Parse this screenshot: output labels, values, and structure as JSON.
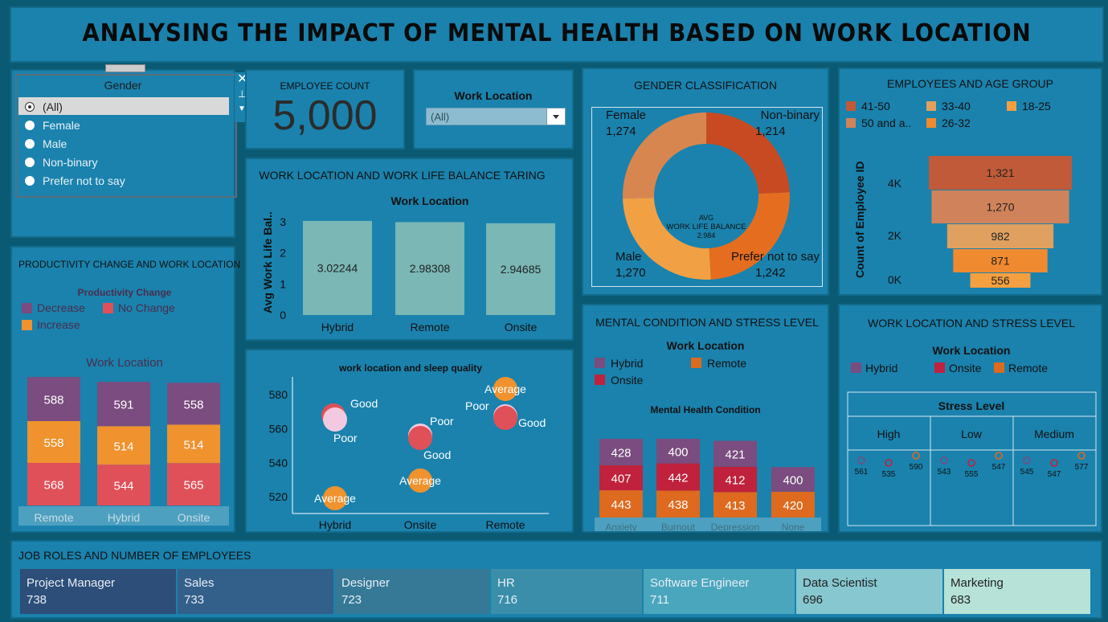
{
  "title": "ANALYSING THE IMPACT OF MENTAL HEALTH BASED ON WORK LOCATION",
  "colors": {
    "bg": "#1a82ad",
    "hybrid": "#7a4c7f",
    "onsite": "#c0213c",
    "remote": "#dd6a1e",
    "decrease": "#7a4c7f",
    "nochange": "#e05058",
    "increase": "#f0922e"
  },
  "gender_filter": {
    "title": "Gender",
    "options": [
      "(All)",
      "Female",
      "Male",
      "Non-binary",
      "Prefer not to say"
    ],
    "selected": "(All)"
  },
  "employee_count": {
    "label": "EMPLOYEE COUNT",
    "value": "5,000"
  },
  "work_location_filter": {
    "label": "Work Location",
    "value": "(All)"
  },
  "chart_data": [
    {
      "id": "gender_classification",
      "type": "pie",
      "title": "GENDER CLASSIFICATION",
      "center_label": [
        "AVG",
        "WORK LIFE BALANCE",
        "2.984"
      ],
      "slices": [
        {
          "name": "Non-binary",
          "value": 1214,
          "label": "1,214"
        },
        {
          "name": "Prefer not to say",
          "value": 1242,
          "label": "1,242"
        },
        {
          "name": "Male",
          "value": 1270,
          "label": "1,270"
        },
        {
          "name": "Female",
          "value": 1274,
          "label": "1,274"
        }
      ]
    },
    {
      "id": "age_group",
      "type": "bar",
      "title": "EMPLOYEES AND AGE GROUP",
      "legend": [
        "41-50",
        "33-40",
        "18-25",
        "50 and a..",
        "26-32"
      ],
      "ylabel": "Count of Employee ID",
      "yticks": [
        "4K",
        "2K",
        "0K"
      ],
      "categories": [
        "41-50",
        "50 and above",
        "33-40",
        "26-32",
        "18-25"
      ],
      "values": [
        1321,
        1270,
        982,
        871,
        556
      ],
      "labels": [
        "1,321",
        "1,270",
        "982",
        "871",
        "556"
      ]
    },
    {
      "id": "worklife_balance",
      "type": "bar",
      "title": "WORK LOCATION AND WORK LIFE BALANCE TARING",
      "subtitle": "Work Location",
      "ylabel": "Avg Work Life Bal..",
      "ylim": [
        0,
        3
      ],
      "yticks": [
        "3",
        "2",
        "1",
        "0"
      ],
      "categories": [
        "Hybrid",
        "Remote",
        "Onsite"
      ],
      "values": [
        3.02244,
        2.98308,
        2.94685
      ],
      "labels": [
        "3.02244",
        "2.98308",
        "2.94685"
      ]
    },
    {
      "id": "productivity",
      "type": "bar",
      "title": "PRODUCTIVITY CHANGE AND WORK LOCATION",
      "legend_title": "Productivity Change",
      "legend": [
        "Decrease",
        "No Change",
        "Increase"
      ],
      "subtitle": "Work Location",
      "categories": [
        "Remote",
        "Hybrid",
        "Onsite"
      ],
      "series": [
        {
          "name": "Decrease",
          "values": [
            588,
            591,
            558
          ]
        },
        {
          "name": "Increase",
          "values": [
            558,
            514,
            514
          ]
        },
        {
          "name": "No Change",
          "values": [
            568,
            544,
            565
          ]
        }
      ]
    },
    {
      "id": "sleep_quality",
      "type": "scatter",
      "title": "work location and sleep quality",
      "categories": [
        "Hybrid",
        "Onsite",
        "Remote"
      ],
      "yticks": [
        "580",
        "560",
        "540",
        "520"
      ],
      "ylim": [
        512,
        584
      ],
      "points": [
        {
          "x": "Hybrid",
          "y": 570,
          "label": "Good",
          "value_color": "#e05058"
        },
        {
          "x": "Hybrid",
          "y": 566,
          "label": "Poor",
          "value_color": "#f2c9e0"
        },
        {
          "x": "Hybrid",
          "y": 520,
          "label": "Average",
          "value_color": "#f0922e"
        },
        {
          "x": "Onsite",
          "y": 556,
          "label": "Poor",
          "value_color": "#f2c9e0"
        },
        {
          "x": "Onsite",
          "y": 554,
          "label": "Good",
          "value_color": "#e05058"
        },
        {
          "x": "Onsite",
          "y": 530,
          "label": "Average",
          "value_color": "#f0922e"
        },
        {
          "x": "Remote",
          "y": 583,
          "label": "Average",
          "value_color": "#f0922e"
        },
        {
          "x": "Remote",
          "y": 567,
          "label": "Poor",
          "value_color": "#f2c9e0"
        },
        {
          "x": "Remote",
          "y": 567,
          "label": "Good",
          "value_color": "#e05058"
        }
      ]
    },
    {
      "id": "mental_stress",
      "type": "bar",
      "title": "MENTAL CONDITION AND STRESS LEVEL",
      "legend_title": "Work Location",
      "legend": [
        "Hybrid",
        "Remote",
        "Onsite"
      ],
      "subtitle": "Mental Health Condition",
      "categories": [
        "Anxiety",
        "Burnout",
        "Depression",
        "None"
      ],
      "series": [
        {
          "name": "Hybrid",
          "values": [
            428,
            400,
            421,
            400
          ]
        },
        {
          "name": "Onsite",
          "values": [
            407,
            442,
            412,
            null
          ]
        },
        {
          "name": "Remote",
          "values": [
            443,
            438,
            413,
            420
          ]
        }
      ]
    },
    {
      "id": "work_stress",
      "type": "scatter",
      "title": "WORK LOCATION AND STRESS LEVEL",
      "legend_title": "Work Location",
      "legend": [
        "Hybrid",
        "Onsite",
        "Remote"
      ],
      "subtitle": "Stress Level",
      "columns": [
        "High",
        "Low",
        "Medium"
      ],
      "points": [
        {
          "col": "High",
          "series": "Hybrid",
          "value": 561
        },
        {
          "col": "High",
          "series": "Onsite",
          "value": 535
        },
        {
          "col": "High",
          "series": "Remote",
          "value": 590
        },
        {
          "col": "Low",
          "series": "Hybrid",
          "value": 543
        },
        {
          "col": "Low",
          "series": "Onsite",
          "value": 555
        },
        {
          "col": "Low",
          "series": "Remote",
          "value": 547
        },
        {
          "col": "Medium",
          "series": "Hybrid",
          "value": 545
        },
        {
          "col": "Medium",
          "series": "Onsite",
          "value": 547
        },
        {
          "col": "Medium",
          "series": "Remote",
          "value": 577
        }
      ]
    },
    {
      "id": "job_roles",
      "type": "heatmap",
      "title": "JOB ROLES AND NUMBER OF EMPLOYEES",
      "cells": [
        {
          "name": "Project Manager",
          "value": "738"
        },
        {
          "name": "Sales",
          "value": "733"
        },
        {
          "name": "Designer",
          "value": "723"
        },
        {
          "name": "HR",
          "value": "716"
        },
        {
          "name": "Software Engineer",
          "value": "711"
        },
        {
          "name": "Data Scientist",
          "value": "696"
        },
        {
          "name": "Marketing",
          "value": "683"
        }
      ]
    }
  ]
}
